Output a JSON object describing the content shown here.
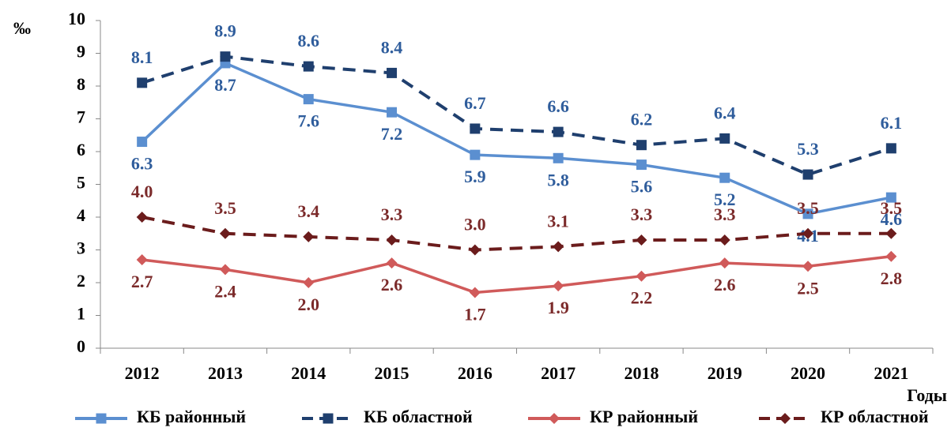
{
  "chart_data": {
    "type": "line",
    "y_unit": "‰",
    "x_label": "Годы",
    "categories": [
      "2012",
      "2013",
      "2014",
      "2015",
      "2016",
      "2017",
      "2018",
      "2019",
      "2020",
      "2021"
    ],
    "ylim": [
      0,
      10
    ],
    "yticks": [
      0,
      1,
      2,
      3,
      4,
      5,
      6,
      7,
      8,
      9,
      10
    ],
    "series": [
      {
        "name": "КБ районный",
        "color": "#5b8fd0",
        "label_color": "#2f5d9c",
        "style": "solid",
        "marker": "square",
        "label_side": "below",
        "values": [
          6.3,
          8.7,
          7.6,
          7.2,
          5.9,
          5.8,
          5.6,
          5.2,
          4.1,
          4.6
        ]
      },
      {
        "name": "КБ областной",
        "color": "#1f3f6e",
        "label_color": "#2f5d9c",
        "style": "dashed",
        "marker": "square",
        "label_side": "above",
        "values": [
          8.1,
          8.9,
          8.6,
          8.4,
          6.7,
          6.6,
          6.2,
          6.4,
          5.3,
          6.1
        ]
      },
      {
        "name": "КР районный",
        "color": "#d05a5a",
        "label_color": "#7b2a2a",
        "style": "solid",
        "marker": "diamond",
        "label_side": "below",
        "values": [
          2.7,
          2.4,
          2.0,
          2.6,
          1.7,
          1.9,
          2.2,
          2.6,
          2.5,
          2.8
        ],
        "value_labels": [
          "2.7",
          "2.4",
          "2.0",
          "2.6",
          "1.7",
          "1.9",
          "2.2",
          "2.6",
          "2.5",
          "2.8"
        ]
      },
      {
        "name": "КР областной",
        "color": "#6b1c1c",
        "label_color": "#7b2a2a",
        "style": "dashed",
        "marker": "diamond",
        "label_side": "above",
        "values": [
          4.0,
          3.5,
          3.4,
          3.3,
          3.0,
          3.1,
          3.3,
          3.3,
          3.5,
          3.5
        ],
        "value_labels": [
          "4.0",
          "3.5",
          "3.4",
          "3.3",
          "3.0",
          "3.1",
          "3.3",
          "3.3",
          "3.5",
          "3.5"
        ]
      }
    ]
  }
}
